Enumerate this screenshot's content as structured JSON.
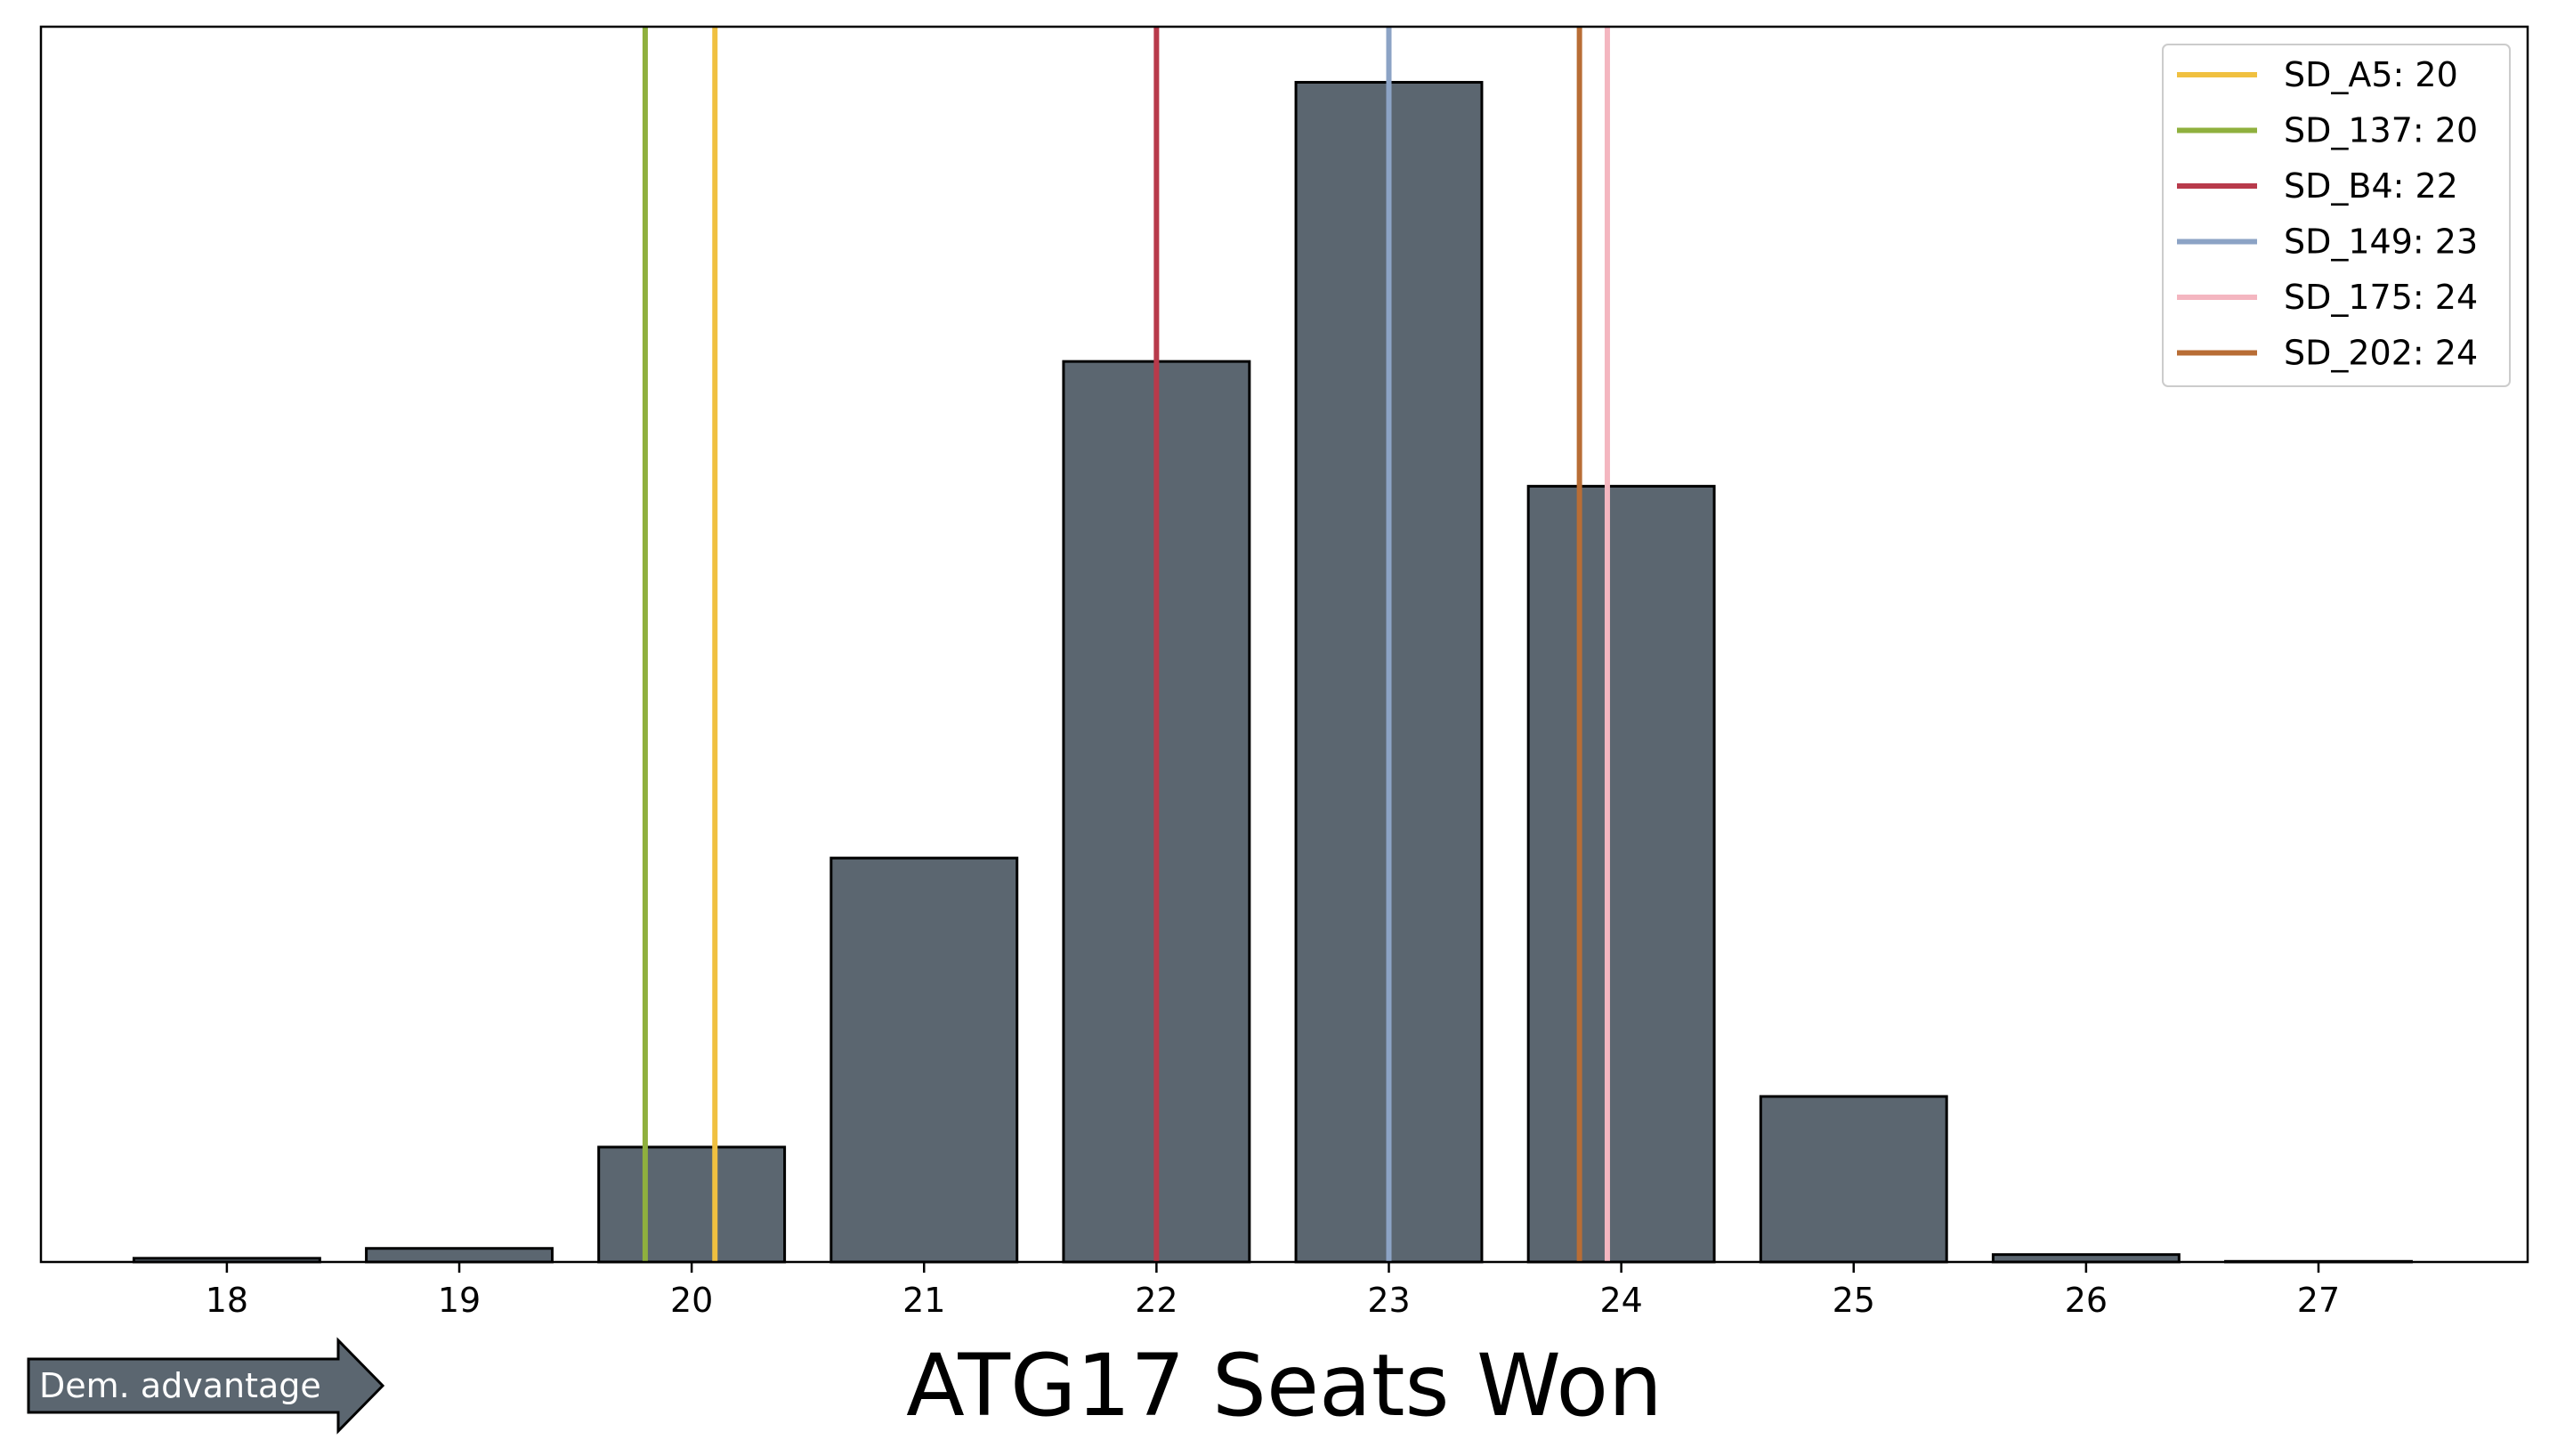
{
  "chart_data": {
    "type": "bar",
    "categories": [
      "18",
      "19",
      "20",
      "21",
      "22",
      "23",
      "24",
      "25",
      "26",
      "27"
    ],
    "x": [
      18,
      19,
      20,
      21,
      22,
      23,
      24,
      25,
      26,
      27
    ],
    "values": [
      0.3,
      1.1,
      9.3,
      32.7,
      72.9,
      95.5,
      62.8,
      13.4,
      0.6,
      0.05
    ],
    "xlabel": "ATG17 Seats Won",
    "ylabel": "",
    "yticks_visible": false,
    "ylim": [
      0,
      100
    ],
    "bar_color": "#5b6670",
    "bar_edge_color": "#000000",
    "grid": false,
    "legend_position": "top-right",
    "reference_lines": [
      {
        "name": "SD_A5",
        "label": "SD_A5: 20",
        "x": 20.1,
        "color": "#f0c040"
      },
      {
        "name": "SD_137",
        "label": "SD_137: 20",
        "x": 19.8,
        "color": "#8fb03e"
      },
      {
        "name": "SD_B4",
        "label": "SD_B4: 22",
        "x": 22.0,
        "color": "#b83a4b"
      },
      {
        "name": "SD_149",
        "label": "SD_149: 23",
        "x": 23.0,
        "color": "#8ca3c5"
      },
      {
        "name": "SD_175",
        "label": "SD_175: 24",
        "x": 23.94,
        "color": "#f4b6c0"
      },
      {
        "name": "SD_202",
        "label": "SD_202: 24",
        "x": 23.82,
        "color": "#b86d35"
      }
    ],
    "annotation": {
      "text": "Dem. advantage",
      "color": "#5b6670"
    }
  }
}
